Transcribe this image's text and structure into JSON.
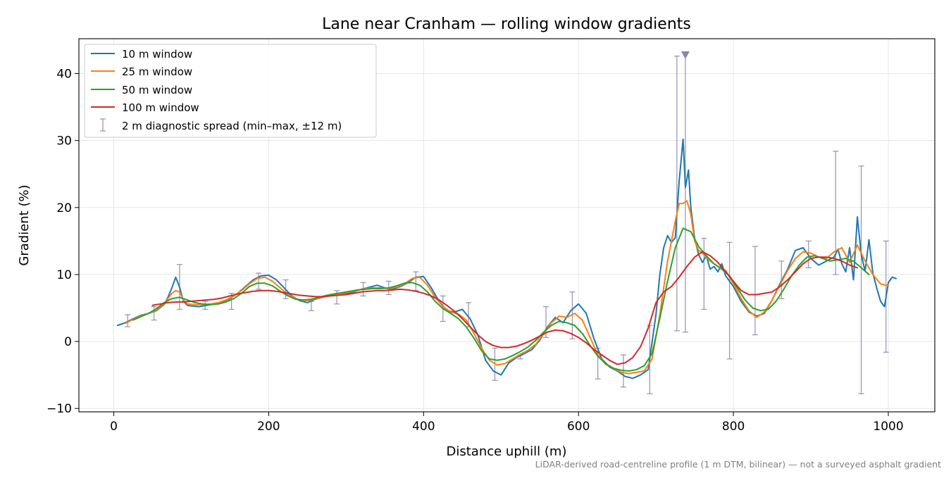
{
  "chart_data": {
    "type": "line",
    "title": "Lane near Cranham — rolling window gradients",
    "xlabel": "Distance uphill (m)",
    "ylabel": "Gradient (%)",
    "footnote": "LiDAR-derived road-centreline profile (1 m DTM, bilinear) — not a surveyed asphalt gradient",
    "xlim": [
      -45,
      1060
    ],
    "ylim": [
      -10.5,
      45.2
    ],
    "x_ticks": [
      0,
      200,
      400,
      600,
      800,
      1000
    ],
    "x_tick_labels": [
      "0",
      "200",
      "400",
      "600",
      "800",
      "1000"
    ],
    "y_ticks": [
      -10,
      0,
      10,
      20,
      30,
      40
    ],
    "y_tick_labels": [
      "−10",
      "0",
      "10",
      "20",
      "30",
      "40"
    ],
    "grid": true,
    "legend_position": "top-left",
    "series": [
      {
        "name": "10 m window",
        "color": "#1f77b4",
        "x": [
          5,
          15,
          25,
          35,
          45,
          55,
          65,
          70,
          75,
          80,
          85,
          90,
          95,
          100,
          110,
          120,
          130,
          140,
          150,
          160,
          170,
          180,
          190,
          200,
          210,
          220,
          230,
          240,
          250,
          260,
          270,
          280,
          290,
          300,
          310,
          320,
          330,
          340,
          350,
          360,
          370,
          380,
          390,
          400,
          410,
          420,
          430,
          440,
          450,
          460,
          470,
          480,
          490,
          500,
          510,
          520,
          530,
          540,
          550,
          560,
          570,
          580,
          590,
          600,
          610,
          620,
          630,
          640,
          650,
          660,
          670,
          680,
          690,
          700,
          705,
          710,
          715,
          720,
          725,
          730,
          735,
          738,
          742,
          745,
          750,
          755,
          760,
          765,
          770,
          775,
          780,
          785,
          790,
          800,
          810,
          820,
          830,
          840,
          850,
          860,
          870,
          880,
          890,
          900,
          910,
          920,
          930,
          935,
          940,
          945,
          950,
          955,
          960,
          965,
          970,
          975,
          980,
          985,
          990,
          995,
          1000,
          1005,
          1010
        ],
        "values": [
          2.4,
          2.8,
          3.4,
          3.9,
          4.2,
          4.6,
          5.5,
          6.6,
          8.0,
          9.6,
          8.1,
          6.0,
          5.4,
          5.3,
          5.2,
          5.4,
          5.6,
          5.9,
          6.4,
          7.2,
          8.2,
          9.2,
          9.8,
          9.9,
          9.2,
          8.0,
          6.8,
          6.1,
          5.8,
          6.3,
          6.6,
          7.0,
          7.2,
          7.1,
          7.4,
          7.8,
          8.1,
          8.4,
          8.0,
          7.8,
          8.2,
          8.8,
          9.6,
          9.7,
          8.0,
          6.0,
          4.6,
          4.4,
          4.8,
          3.4,
          1.0,
          -2.8,
          -4.4,
          -5.0,
          -3.2,
          -2.4,
          -1.8,
          -1.2,
          0.2,
          2.2,
          3.6,
          2.8,
          4.6,
          5.6,
          4.2,
          0.4,
          -2.6,
          -3.8,
          -4.4,
          -5.2,
          -5.5,
          -5.0,
          -4.2,
          4.0,
          10.0,
          14.0,
          15.8,
          14.8,
          15.5,
          24.0,
          30.2,
          23.0,
          25.6,
          20.0,
          15.4,
          13.0,
          11.8,
          12.8,
          10.8,
          11.2,
          10.4,
          11.6,
          9.8,
          8.2,
          6.0,
          4.4,
          3.8,
          4.2,
          6.2,
          8.6,
          10.8,
          13.6,
          14.0,
          12.4,
          11.4,
          12.0,
          12.6,
          13.8,
          11.6,
          10.4,
          14.0,
          9.2,
          18.6,
          13.0,
          10.5,
          15.2,
          10.2,
          8.0,
          6.0,
          5.2,
          8.8,
          9.6,
          9.4
        ]
      },
      {
        "name": "25 m window",
        "color": "#ff7f0e",
        "x": [
          15,
          25,
          35,
          45,
          55,
          65,
          75,
          80,
          85,
          90,
          95,
          105,
          115,
          125,
          135,
          145,
          155,
          165,
          175,
          185,
          195,
          205,
          215,
          225,
          235,
          245,
          255,
          265,
          275,
          285,
          295,
          305,
          315,
          325,
          335,
          345,
          355,
          365,
          375,
          385,
          395,
          405,
          415,
          425,
          435,
          445,
          455,
          465,
          475,
          485,
          495,
          505,
          515,
          525,
          535,
          545,
          555,
          565,
          575,
          585,
          595,
          605,
          615,
          625,
          635,
          645,
          655,
          665,
          675,
          685,
          695,
          705,
          715,
          725,
          730,
          735,
          740,
          745,
          750,
          755,
          760,
          770,
          780,
          790,
          800,
          810,
          820,
          830,
          840,
          850,
          860,
          870,
          880,
          890,
          900,
          910,
          920,
          930,
          940,
          950,
          960,
          970,
          980,
          990,
          1000
        ],
        "values": [
          2.7,
          3.3,
          3.8,
          4.2,
          4.7,
          5.6,
          7.2,
          7.6,
          7.4,
          6.2,
          5.6,
          5.5,
          5.5,
          5.6,
          5.8,
          6.2,
          6.8,
          7.6,
          8.6,
          9.4,
          9.6,
          9.0,
          8.0,
          7.0,
          6.4,
          6.1,
          6.2,
          6.5,
          6.8,
          7.0,
          7.2,
          7.4,
          7.6,
          7.9,
          8.0,
          8.0,
          7.9,
          8.1,
          8.6,
          9.4,
          9.6,
          8.4,
          6.6,
          5.2,
          4.4,
          4.1,
          3.2,
          1.2,
          -1.0,
          -2.8,
          -3.5,
          -3.3,
          -2.6,
          -1.9,
          -1.3,
          -0.4,
          1.2,
          2.8,
          3.8,
          3.6,
          4.2,
          3.2,
          0.6,
          -2.0,
          -3.4,
          -4.0,
          -4.6,
          -4.8,
          -4.6,
          -4.4,
          -2.6,
          4.0,
          12.0,
          18.0,
          20.6,
          20.6,
          21.0,
          19.0,
          15.0,
          13.6,
          13.2,
          12.0,
          11.2,
          10.6,
          8.6,
          6.4,
          4.6,
          3.6,
          4.4,
          6.2,
          8.4,
          10.6,
          12.4,
          13.4,
          13.2,
          12.6,
          12.4,
          13.4,
          14.0,
          11.8,
          14.4,
          12.0,
          10.0,
          8.6,
          8.3
        ]
      },
      {
        "name": "50 m window",
        "color": "#2ca02c",
        "x": [
          25,
          35,
          45,
          55,
          65,
          75,
          85,
          95,
          105,
          115,
          125,
          135,
          145,
          155,
          165,
          175,
          185,
          195,
          205,
          215,
          225,
          235,
          245,
          255,
          265,
          275,
          285,
          295,
          305,
          315,
          325,
          335,
          345,
          355,
          365,
          375,
          385,
          395,
          405,
          415,
          425,
          435,
          445,
          455,
          465,
          475,
          485,
          495,
          505,
          515,
          525,
          535,
          545,
          555,
          565,
          575,
          585,
          595,
          605,
          615,
          625,
          635,
          645,
          655,
          665,
          675,
          685,
          695,
          705,
          715,
          725,
          735,
          745,
          755,
          765,
          775,
          785,
          795,
          805,
          815,
          825,
          835,
          845,
          855,
          865,
          875,
          885,
          895,
          905,
          915,
          925,
          935,
          945,
          955,
          965,
          975
        ],
        "values": [
          3.2,
          3.7,
          4.2,
          4.9,
          5.8,
          6.4,
          6.6,
          6.2,
          5.8,
          5.6,
          5.5,
          5.6,
          5.9,
          6.4,
          7.2,
          8.2,
          8.7,
          8.7,
          8.3,
          7.5,
          6.8,
          6.3,
          6.2,
          6.3,
          6.6,
          6.9,
          7.1,
          7.3,
          7.5,
          7.7,
          7.8,
          7.9,
          7.9,
          8.0,
          8.3,
          8.7,
          8.8,
          8.4,
          7.4,
          6.0,
          4.9,
          4.2,
          3.4,
          2.2,
          0.5,
          -1.4,
          -2.6,
          -2.8,
          -2.6,
          -2.1,
          -1.5,
          -0.8,
          0.2,
          1.4,
          2.4,
          3.0,
          2.8,
          2.4,
          1.2,
          -0.6,
          -2.2,
          -3.3,
          -4.0,
          -4.3,
          -4.4,
          -4.2,
          -3.6,
          -1.8,
          3.5,
          9.0,
          14.0,
          16.9,
          16.4,
          14.2,
          12.8,
          11.6,
          10.8,
          9.8,
          8.0,
          6.2,
          5.0,
          4.6,
          4.8,
          6.0,
          7.8,
          9.8,
          11.4,
          12.6,
          12.8,
          12.4,
          12.0,
          12.2,
          12.4,
          12.0,
          11.0,
          10.0
        ]
      },
      {
        "name": "100 m window",
        "color": "#d62728",
        "x": [
          50,
          60,
          70,
          80,
          90,
          100,
          110,
          120,
          130,
          140,
          150,
          160,
          170,
          180,
          190,
          200,
          210,
          220,
          230,
          240,
          250,
          260,
          270,
          280,
          290,
          300,
          310,
          320,
          330,
          340,
          350,
          360,
          370,
          380,
          390,
          400,
          410,
          420,
          430,
          440,
          450,
          460,
          470,
          480,
          490,
          500,
          510,
          520,
          530,
          540,
          550,
          560,
          570,
          580,
          590,
          600,
          610,
          620,
          630,
          640,
          650,
          660,
          670,
          680,
          690,
          700,
          710,
          720,
          730,
          740,
          750,
          760,
          770,
          780,
          790,
          800,
          810,
          820,
          830,
          840,
          850,
          860,
          870,
          880,
          890,
          900,
          910,
          920,
          930,
          940,
          950,
          960
        ],
        "values": [
          5.4,
          5.6,
          5.8,
          5.9,
          5.9,
          6.0,
          6.1,
          6.2,
          6.3,
          6.5,
          6.8,
          7.1,
          7.3,
          7.5,
          7.6,
          7.6,
          7.5,
          7.3,
          7.1,
          6.9,
          6.8,
          6.7,
          6.7,
          6.8,
          6.9,
          7.0,
          7.2,
          7.4,
          7.5,
          7.6,
          7.6,
          7.7,
          7.8,
          7.7,
          7.5,
          7.2,
          6.8,
          6.2,
          5.4,
          4.5,
          3.4,
          2.2,
          1.0,
          0.0,
          -0.6,
          -0.9,
          -0.9,
          -0.7,
          -0.3,
          0.2,
          0.8,
          1.4,
          1.7,
          1.6,
          1.2,
          0.6,
          -0.2,
          -1.2,
          -2.0,
          -2.8,
          -3.4,
          -3.2,
          -2.4,
          -0.8,
          2.0,
          5.8,
          7.4,
          8.2,
          9.6,
          11.2,
          12.6,
          13.4,
          12.8,
          11.8,
          10.4,
          9.0,
          7.6,
          7.0,
          7.0,
          7.2,
          7.4,
          8.2,
          9.2,
          10.4,
          11.6,
          12.4,
          12.6,
          12.6,
          12.4,
          12.0,
          11.4,
          11.0
        ]
      }
    ],
    "error_bars": {
      "name": "2 m diagnostic spread (min–max, ±12 m)",
      "color": "#9390b8",
      "x": [
        18,
        52,
        85,
        118,
        152,
        187,
        222,
        255,
        288,
        322,
        355,
        390,
        425,
        458,
        492,
        525,
        558,
        592,
        625,
        658,
        692,
        727,
        738,
        762,
        795,
        828,
        862,
        897,
        932,
        965,
        997
      ],
      "min": [
        2.2,
        3.2,
        4.8,
        4.8,
        4.8,
        7.8,
        6.4,
        4.6,
        5.6,
        6.8,
        7.0,
        7.6,
        3.0,
        2.2,
        -5.8,
        -2.6,
        0.6,
        0.4,
        -5.6,
        -6.8,
        -7.8,
        1.6,
        1.4,
        4.8,
        -2.6,
        1.0,
        6.4,
        11.0,
        10.0,
        -7.8,
        -1.6
      ],
      "max": [
        4.0,
        5.2,
        11.5,
        6.0,
        7.2,
        10.2,
        9.2,
        6.0,
        7.6,
        8.8,
        9.0,
        10.4,
        6.8,
        5.8,
        -1.0,
        -2.0,
        5.2,
        7.4,
        -1.0,
        -2.0,
        2.4,
        42.6,
        43.0,
        15.4,
        14.8,
        14.2,
        12.0,
        15.0,
        28.4,
        26.2,
        15.0
      ],
      "clipped_marker": {
        "x": 738,
        "y": 42.8
      }
    }
  }
}
